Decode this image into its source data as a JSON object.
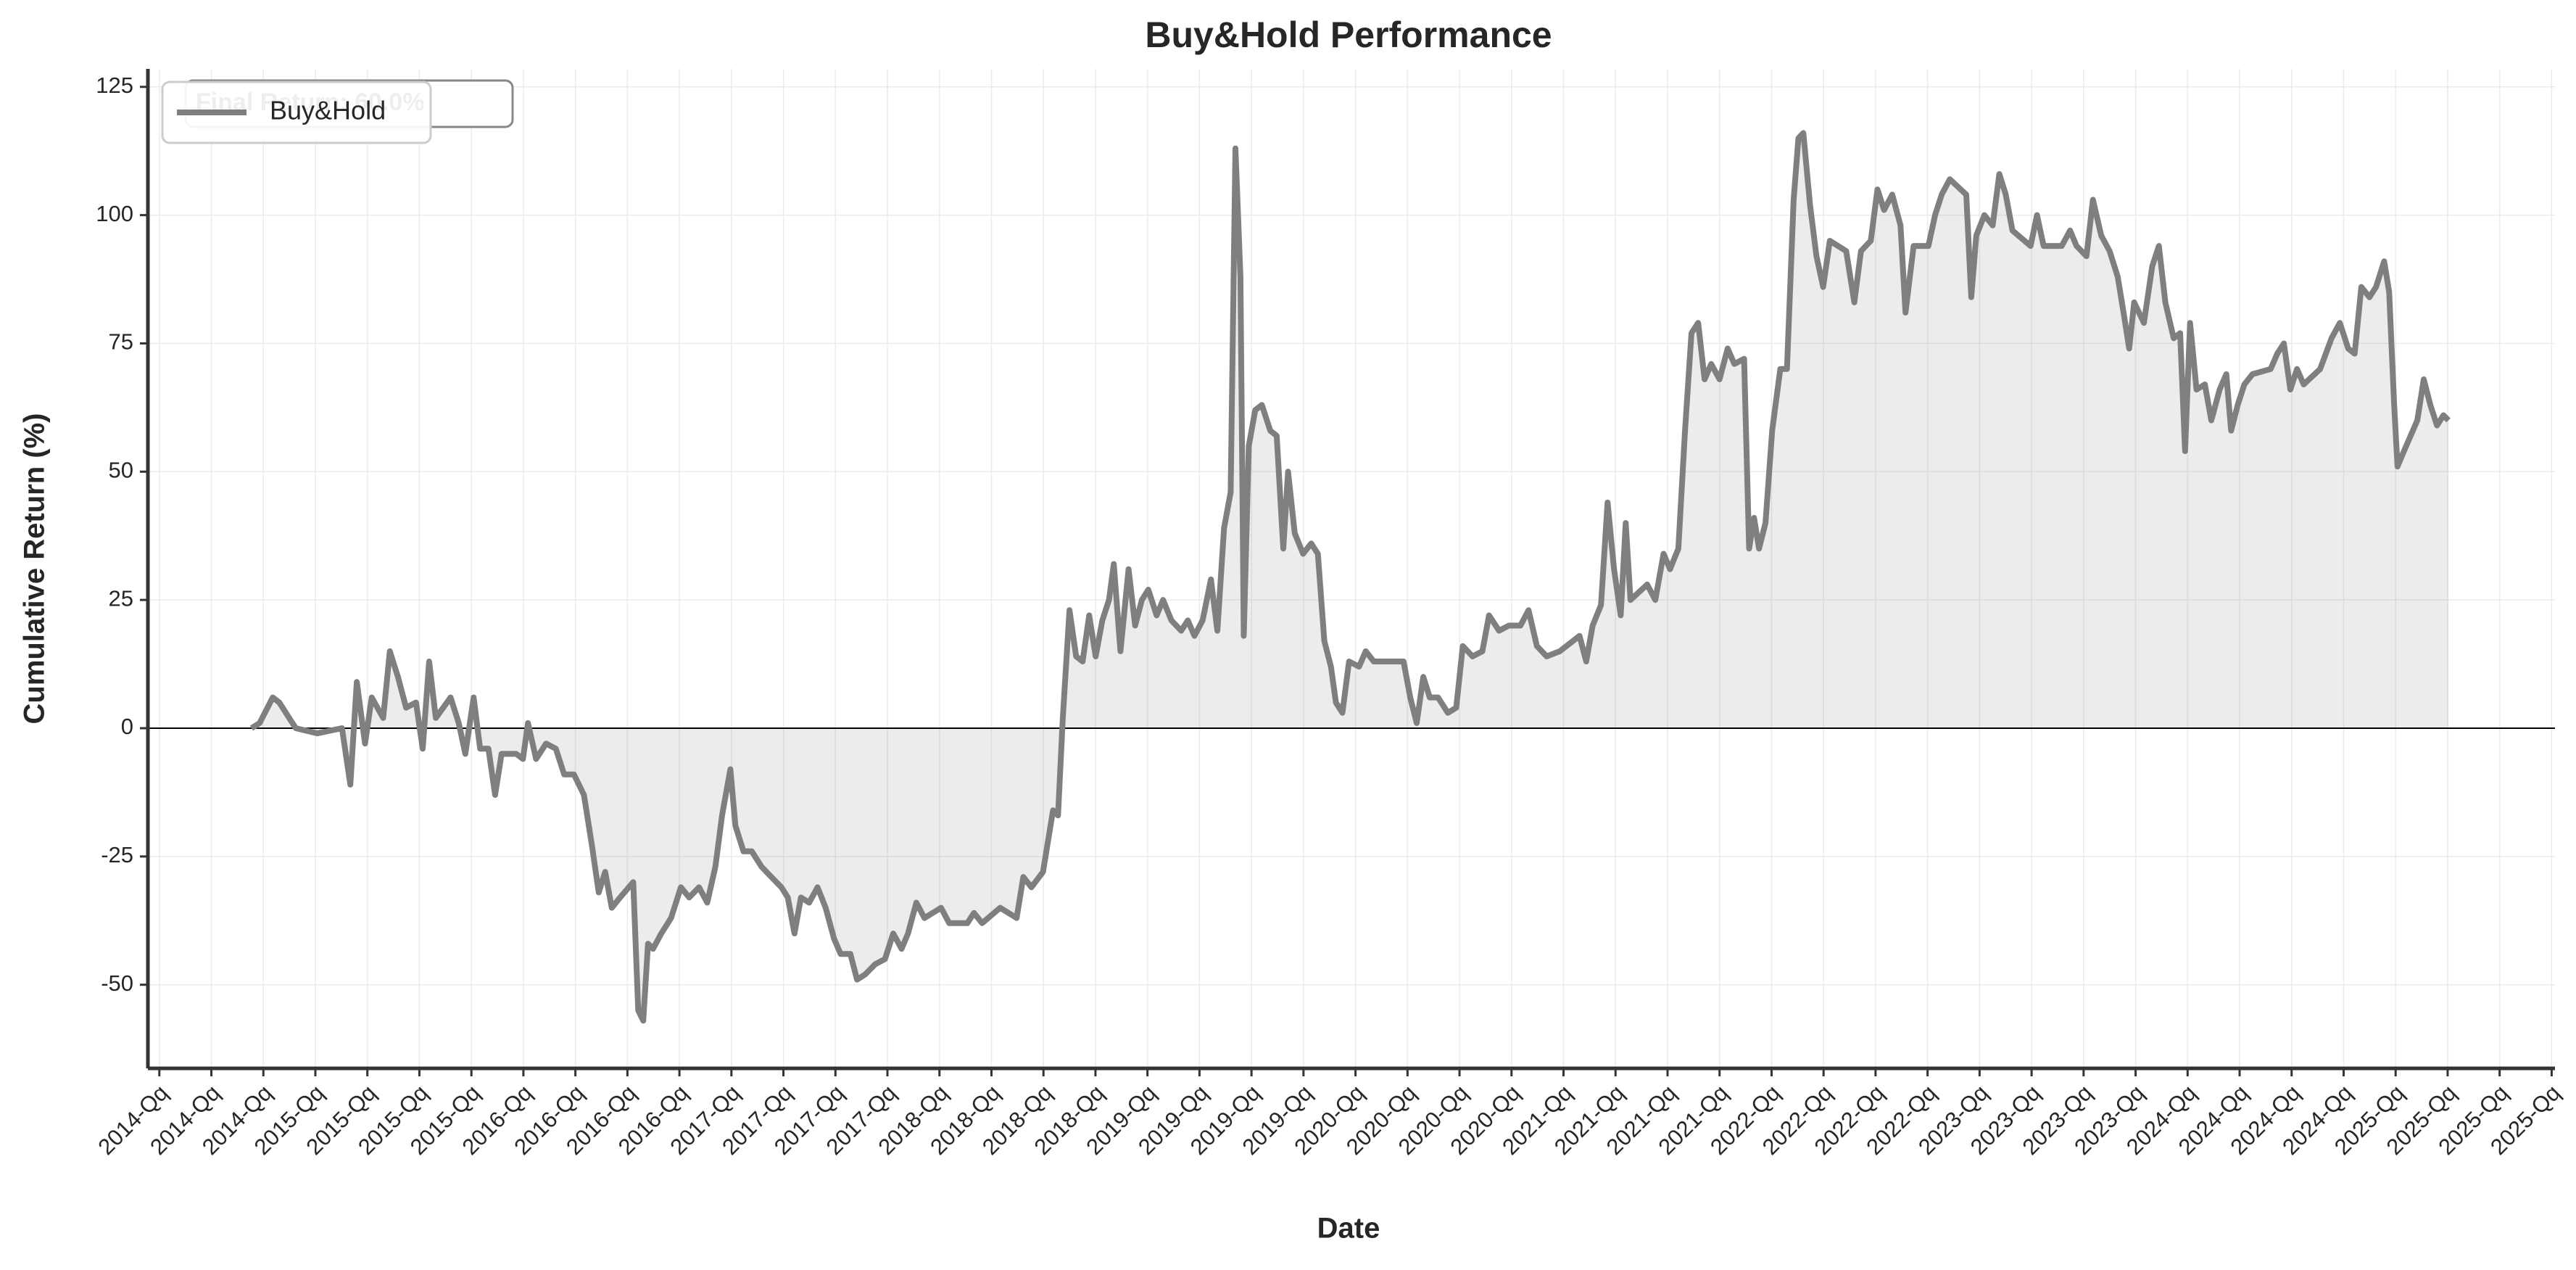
{
  "chart_data": {
    "type": "line",
    "title": "Buy&Hold Performance",
    "x_label": "Date",
    "y_label": "Cumulative Return (%)",
    "annotation": "Final Return: 60.0%",
    "legend": "upper left",
    "grid": true,
    "zero_line": true,
    "fill_to_zero": true,
    "xlim": [
      2014.195,
      2025.766
    ],
    "ylim": [
      -66.3,
      128.5
    ],
    "yticks": [
      -50,
      -25,
      0,
      25,
      50,
      75,
      100,
      125
    ],
    "xticks": [
      {
        "value": 2014.25,
        "label": "2014-Qq"
      },
      {
        "value": 2014.5,
        "label": "2014-Qq"
      },
      {
        "value": 2014.75,
        "label": "2014-Qq"
      },
      {
        "value": 2015.0,
        "label": "2015-Qq"
      },
      {
        "value": 2015.25,
        "label": "2015-Qq"
      },
      {
        "value": 2015.5,
        "label": "2015-Qq"
      },
      {
        "value": 2015.75,
        "label": "2015-Qq"
      },
      {
        "value": 2016.0,
        "label": "2016-Qq"
      },
      {
        "value": 2016.25,
        "label": "2016-Qq"
      },
      {
        "value": 2016.5,
        "label": "2016-Qq"
      },
      {
        "value": 2016.75,
        "label": "2016-Qq"
      },
      {
        "value": 2017.0,
        "label": "2017-Qq"
      },
      {
        "value": 2017.25,
        "label": "2017-Qq"
      },
      {
        "value": 2017.5,
        "label": "2017-Qq"
      },
      {
        "value": 2017.75,
        "label": "2017-Qq"
      },
      {
        "value": 2018.0,
        "label": "2018-Qq"
      },
      {
        "value": 2018.25,
        "label": "2018-Qq"
      },
      {
        "value": 2018.5,
        "label": "2018-Qq"
      },
      {
        "value": 2018.75,
        "label": "2018-Qq"
      },
      {
        "value": 2019.0,
        "label": "2019-Qq"
      },
      {
        "value": 2019.25,
        "label": "2019-Qq"
      },
      {
        "value": 2019.5,
        "label": "2019-Qq"
      },
      {
        "value": 2019.75,
        "label": "2019-Qq"
      },
      {
        "value": 2020.0,
        "label": "2020-Qq"
      },
      {
        "value": 2020.25,
        "label": "2020-Qq"
      },
      {
        "value": 2020.5,
        "label": "2020-Qq"
      },
      {
        "value": 2020.75,
        "label": "2020-Qq"
      },
      {
        "value": 2021.0,
        "label": "2021-Qq"
      },
      {
        "value": 2021.25,
        "label": "2021-Qq"
      },
      {
        "value": 2021.5,
        "label": "2021-Qq"
      },
      {
        "value": 2021.75,
        "label": "2021-Qq"
      },
      {
        "value": 2022.0,
        "label": "2022-Qq"
      },
      {
        "value": 2022.25,
        "label": "2022-Qq"
      },
      {
        "value": 2022.5,
        "label": "2022-Qq"
      },
      {
        "value": 2022.75,
        "label": "2022-Qq"
      },
      {
        "value": 2023.0,
        "label": "2023-Qq"
      },
      {
        "value": 2023.25,
        "label": "2023-Qq"
      },
      {
        "value": 2023.5,
        "label": "2023-Qq"
      },
      {
        "value": 2023.75,
        "label": "2023-Qq"
      },
      {
        "value": 2024.0,
        "label": "2024-Qq"
      },
      {
        "value": 2024.25,
        "label": "2024-Qq"
      },
      {
        "value": 2024.5,
        "label": "2024-Qq"
      },
      {
        "value": 2024.75,
        "label": "2024-Qq"
      },
      {
        "value": 2025.0,
        "label": "2025-Qq"
      },
      {
        "value": 2025.25,
        "label": "2025-Qq"
      },
      {
        "value": 2025.5,
        "label": "2025-Qq"
      },
      {
        "value": 2025.75,
        "label": "2025-Qq"
      }
    ],
    "x": [
      2014.693,
      2014.732,
      2014.795,
      2014.827,
      2014.874,
      2014.906,
      2015.01,
      2015.128,
      2015.168,
      2015.199,
      2015.239,
      2015.271,
      2015.326,
      2015.358,
      2015.397,
      2015.436,
      2015.484,
      2015.516,
      2015.547,
      2015.579,
      2015.65,
      2015.689,
      2015.721,
      2015.761,
      2015.792,
      2015.832,
      2015.864,
      2015.895,
      2015.966,
      2015.998,
      2016.022,
      2016.061,
      2016.109,
      2016.156,
      2016.196,
      2016.243,
      2016.291,
      2016.33,
      2016.362,
      2016.393,
      2016.425,
      2016.465,
      2016.528,
      2016.552,
      2016.576,
      2016.599,
      2016.623,
      2016.663,
      2016.71,
      2016.757,
      2016.797,
      2016.844,
      2016.884,
      2016.923,
      2016.955,
      2016.995,
      2017.019,
      2017.058,
      2017.098,
      2017.145,
      2017.192,
      2017.24,
      2017.271,
      2017.303,
      2017.334,
      2017.374,
      2017.414,
      2017.453,
      2017.493,
      2017.525,
      2017.572,
      2017.604,
      2017.643,
      2017.691,
      2017.738,
      2017.778,
      2017.818,
      2017.849,
      2017.889,
      2017.928,
      2018.008,
      2018.047,
      2018.134,
      2018.166,
      2018.205,
      2018.292,
      2018.371,
      2018.403,
      2018.442,
      2018.498,
      2018.546,
      2018.57,
      2018.593,
      2018.625,
      2018.657,
      2018.688,
      2018.72,
      2018.751,
      2018.783,
      2018.815,
      2018.838,
      2018.87,
      2018.909,
      2018.941,
      2018.973,
      2019.004,
      2019.044,
      2019.075,
      2019.115,
      2019.162,
      2019.194,
      2019.226,
      2019.265,
      2019.305,
      2019.336,
      2019.368,
      2019.4,
      2019.423,
      2019.447,
      2019.463,
      2019.487,
      2019.518,
      2019.55,
      2019.59,
      2019.621,
      2019.653,
      2019.676,
      2019.708,
      2019.748,
      2019.787,
      2019.819,
      2019.85,
      2019.882,
      2019.906,
      2019.937,
      2019.969,
      2020.017,
      2020.049,
      2020.088,
      2020.231,
      2020.263,
      2020.294,
      2020.326,
      2020.357,
      2020.397,
      2020.444,
      2020.484,
      2020.516,
      2020.563,
      2020.61,
      2020.642,
      2020.69,
      2020.737,
      2020.793,
      2020.832,
      2020.872,
      2020.919,
      2020.982,
      2021.077,
      2021.109,
      2021.14,
      2021.18,
      2021.212,
      2021.243,
      2021.275,
      2021.299,
      2021.322,
      2021.402,
      2021.441,
      2021.481,
      2021.512,
      2021.552,
      2021.584,
      2021.615,
      2021.647,
      2021.678,
      2021.71,
      2021.75,
      2021.789,
      2021.821,
      2021.868,
      2021.892,
      2021.916,
      2021.94,
      2021.971,
      2022.003,
      2022.042,
      2022.074,
      2022.106,
      2022.129,
      2022.153,
      2022.185,
      2022.216,
      2022.248,
      2022.28,
      2022.359,
      2022.398,
      2022.43,
      2022.477,
      2022.509,
      2022.541,
      2022.58,
      2022.62,
      2022.644,
      2022.683,
      2022.754,
      2022.786,
      2022.818,
      2022.857,
      2022.936,
      2022.96,
      2022.984,
      2023.023,
      2023.063,
      2023.095,
      2023.126,
      2023.158,
      2023.245,
      2023.276,
      2023.308,
      2023.395,
      2023.435,
      2023.466,
      2023.514,
      2023.545,
      2023.585,
      2023.625,
      2023.664,
      2023.696,
      2023.719,
      2023.743,
      2023.79,
      2023.83,
      2023.862,
      2023.893,
      2023.933,
      2023.964,
      2023.988,
      2024.012,
      2024.043,
      2024.083,
      2024.114,
      2024.154,
      2024.186,
      2024.209,
      2024.241,
      2024.273,
      2024.312,
      2024.399,
      2024.431,
      2024.463,
      2024.494,
      2024.526,
      2024.558,
      2024.637,
      2024.692,
      2024.732,
      2024.772,
      2024.803,
      2024.835,
      2024.874,
      2024.906,
      2024.945,
      2024.969,
      2024.993,
      2025.009,
      2025.04,
      2025.072,
      2025.104,
      2025.135,
      2025.167,
      2025.199,
      2025.23,
      2025.254
    ],
    "series": [
      {
        "name": "Buy&Hold",
        "color": "#7f7f7f",
        "values": [
          0,
          1,
          6,
          5,
          2,
          0,
          -1,
          0,
          -11,
          9,
          -3,
          6,
          2,
          15,
          10,
          4,
          5,
          -4,
          13,
          2,
          6,
          1,
          -5,
          6,
          -4,
          -4,
          -13,
          -5,
          -5,
          -6,
          1,
          -6,
          -3,
          -4,
          -9,
          -9,
          -13,
          -23,
          -32,
          -28,
          -35,
          -33,
          -30,
          -55,
          -57,
          -42,
          -43,
          -40,
          -37,
          -31,
          -33,
          -31,
          -34,
          -27,
          -17,
          -8,
          -19,
          -24,
          -24,
          -27,
          -29,
          -31,
          -33,
          -40,
          -33,
          -34,
          -31,
          -35,
          -41,
          -44,
          -44,
          -49,
          -48,
          -46,
          -45,
          -40,
          -43,
          -40,
          -34,
          -37,
          -35,
          -38,
          -38,
          -36,
          -38,
          -35,
          -37,
          -29,
          -31,
          -28,
          -16,
          -17,
          2,
          23,
          14,
          13,
          22,
          14,
          21,
          25,
          32,
          15,
          31,
          20,
          25,
          27,
          22,
          25,
          21,
          19,
          21,
          18,
          21,
          29,
          19,
          39,
          46,
          113,
          88,
          18,
          55,
          62,
          63,
          58,
          57,
          35,
          50,
          38,
          34,
          36,
          34,
          17,
          12,
          5,
          3,
          13,
          12,
          15,
          13,
          13,
          6,
          1,
          10,
          6,
          6,
          3,
          4,
          16,
          14,
          15,
          22,
          19,
          20,
          20,
          23,
          16,
          14,
          15,
          18,
          13,
          20,
          24,
          44,
          31,
          22,
          40,
          25,
          28,
          25,
          34,
          31,
          35,
          58,
          77,
          79,
          68,
          71,
          68,
          74,
          71,
          72,
          35,
          41,
          35,
          40,
          58,
          70,
          70,
          103,
          115,
          116,
          102,
          92,
          86,
          95,
          93,
          83,
          93,
          95,
          105,
          101,
          104,
          98,
          81,
          94,
          94,
          100,
          104,
          107,
          104,
          84,
          96,
          100,
          98,
          108,
          104,
          97,
          94,
          100,
          94,
          94,
          97,
          94,
          92,
          103,
          96,
          93,
          88,
          80,
          74,
          83,
          79,
          90,
          94,
          83,
          76,
          77,
          54,
          79,
          66,
          67,
          60,
          66,
          69,
          58,
          63,
          67,
          69,
          70,
          73,
          75,
          66,
          70,
          67,
          70,
          76,
          79,
          74,
          73,
          86,
          84,
          86,
          91,
          85,
          63,
          51,
          54,
          57,
          60,
          68,
          63,
          59,
          61,
          60
        ]
      }
    ]
  }
}
